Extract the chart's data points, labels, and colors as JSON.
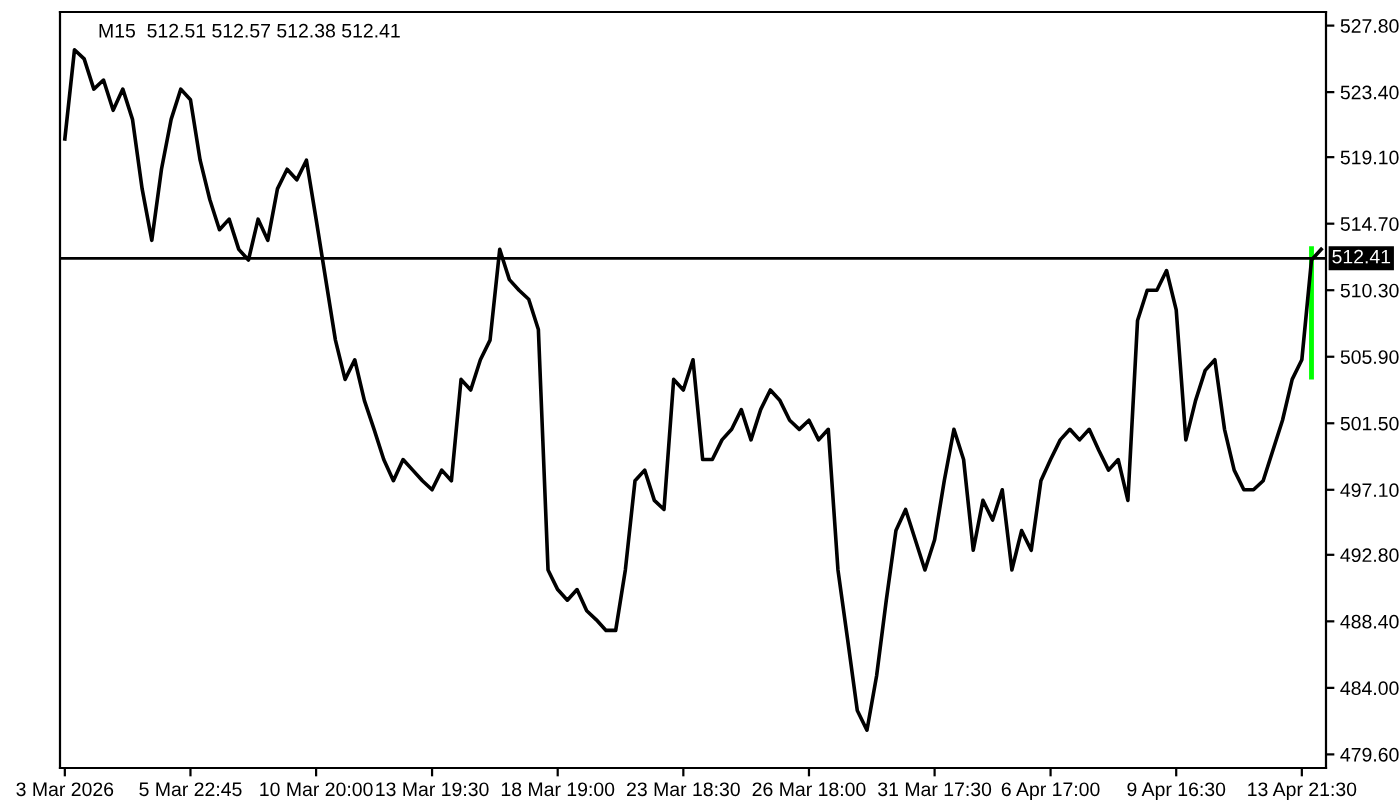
{
  "chart_data": {
    "type": "line",
    "title": "M15  512.51 512.57 512.38 512.41",
    "marker": "none",
    "grid": false,
    "ylim": [
      478.7,
      528.7
    ],
    "categories": [
      "3 Mar 2026",
      null,
      null,
      null,
      null,
      null,
      null,
      null,
      null,
      null,
      null,
      null,
      null,
      "5 Mar 22:45",
      null,
      null,
      null,
      null,
      null,
      null,
      null,
      null,
      null,
      null,
      null,
      null,
      "10 Mar 20:00",
      null,
      null,
      null,
      null,
      null,
      null,
      null,
      null,
      null,
      null,
      null,
      "13 Mar 19:30",
      null,
      null,
      null,
      null,
      null,
      null,
      null,
      null,
      null,
      null,
      null,
      null,
      "18 Mar 19:00",
      null,
      null,
      null,
      null,
      null,
      null,
      null,
      null,
      null,
      null,
      null,
      null,
      "23 Mar 18:30",
      null,
      null,
      null,
      null,
      null,
      null,
      null,
      null,
      null,
      null,
      null,
      null,
      "26 Mar 18:00",
      null,
      null,
      null,
      null,
      null,
      null,
      null,
      null,
      null,
      null,
      null,
      null,
      "31 Mar 17:30",
      null,
      null,
      null,
      null,
      null,
      null,
      null,
      null,
      null,
      null,
      null,
      "6 Apr 17:00",
      null,
      null,
      null,
      null,
      null,
      null,
      null,
      null,
      null,
      null,
      null,
      null,
      "9 Apr 16:30",
      null,
      null,
      null,
      null,
      null,
      null,
      null,
      null,
      null,
      null,
      null,
      null,
      "13 Apr 21:30",
      null,
      null
    ],
    "yticks": [
      {
        "value": 479.6,
        "label": "479.60"
      },
      {
        "value": 484.0,
        "label": "484.00"
      },
      {
        "value": 488.4,
        "label": "488.40"
      },
      {
        "value": 492.8,
        "label": "492.80"
      },
      {
        "value": 497.1,
        "label": "497.10"
      },
      {
        "value": 501.5,
        "label": "501.50"
      },
      {
        "value": 505.9,
        "label": "505.90"
      },
      {
        "value": 510.3,
        "label": "510.30"
      },
      {
        "value": 514.7,
        "label": "514.70"
      },
      {
        "value": 519.1,
        "label": "519.10"
      },
      {
        "value": 523.4,
        "label": "523.40"
      },
      {
        "value": 527.8,
        "label": "527.80"
      }
    ],
    "ref_lines": [
      {
        "axis": "y",
        "value": 512.41,
        "label": "512.41",
        "color": "#000000"
      }
    ],
    "series": [
      {
        "color": "#000000",
        "values": [
          520.3,
          526.2,
          525.6,
          523.6,
          524.2,
          522.2,
          523.6,
          521.6,
          517.0,
          513.6,
          518.3,
          521.6,
          523.6,
          522.9,
          518.9,
          516.3,
          514.3,
          515.0,
          513.0,
          512.3,
          515.0,
          513.6,
          517.0,
          518.3,
          517.6,
          518.9,
          515.0,
          511.0,
          507.0,
          504.4,
          505.7,
          503.0,
          501.1,
          499.1,
          497.7,
          499.1,
          498.4,
          497.7,
          497.1,
          498.4,
          497.7,
          504.4,
          503.7,
          505.7,
          507.0,
          513.0,
          511.0,
          510.3,
          509.7,
          507.7,
          491.8,
          490.5,
          489.8,
          490.5,
          489.1,
          488.5,
          487.8,
          487.8,
          491.8,
          497.7,
          498.4,
          496.4,
          495.8,
          504.4,
          503.7,
          505.7,
          499.1,
          499.1,
          500.4,
          501.1,
          502.4,
          500.4,
          502.4,
          503.7,
          503.0,
          501.7,
          501.1,
          501.7,
          500.4,
          501.1,
          491.8,
          487.2,
          482.5,
          481.2,
          484.8,
          489.8,
          494.4,
          495.8,
          493.8,
          491.8,
          493.8,
          497.7,
          501.1,
          499.1,
          493.1,
          496.4,
          495.1,
          497.1,
          491.8,
          494.4,
          493.1,
          497.7,
          499.1,
          500.4,
          501.1,
          500.4,
          501.1,
          499.7,
          498.4,
          499.1,
          496.4,
          508.3,
          510.3,
          510.3,
          511.6,
          509.0,
          500.4,
          503.0,
          505.0,
          505.7,
          501.1,
          498.4,
          497.1,
          497.1,
          497.7,
          499.7,
          501.7,
          504.4,
          505.7,
          512.3,
          513.0
        ]
      },
      {
        "type": "bar",
        "color": "#00ff00",
        "base": [
          null,
          null,
          null,
          null,
          null,
          null,
          null,
          null,
          null,
          null,
          null,
          null,
          null,
          null,
          null,
          null,
          null,
          null,
          null,
          null,
          null,
          null,
          null,
          null,
          null,
          null,
          null,
          null,
          null,
          null,
          null,
          null,
          null,
          null,
          null,
          null,
          null,
          null,
          null,
          null,
          null,
          null,
          null,
          null,
          null,
          null,
          null,
          null,
          null,
          null,
          null,
          null,
          null,
          null,
          null,
          null,
          null,
          null,
          null,
          null,
          null,
          null,
          null,
          null,
          null,
          null,
          null,
          null,
          null,
          null,
          null,
          null,
          null,
          null,
          null,
          null,
          null,
          null,
          null,
          null,
          null,
          null,
          null,
          null,
          null,
          null,
          null,
          null,
          null,
          null,
          null,
          null,
          null,
          null,
          null,
          null,
          null,
          null,
          null,
          null,
          null,
          null,
          null,
          null,
          null,
          null,
          null,
          null,
          null,
          null,
          null,
          null,
          null,
          null,
          null,
          null,
          null,
          null,
          null,
          null,
          null,
          null,
          null,
          null,
          null,
          null,
          null,
          null,
          null,
          504.4,
          null
        ],
        "values": [
          null,
          null,
          null,
          null,
          null,
          null,
          null,
          null,
          null,
          null,
          null,
          null,
          null,
          null,
          null,
          null,
          null,
          null,
          null,
          null,
          null,
          null,
          null,
          null,
          null,
          null,
          null,
          null,
          null,
          null,
          null,
          null,
          null,
          null,
          null,
          null,
          null,
          null,
          null,
          null,
          null,
          null,
          null,
          null,
          null,
          null,
          null,
          null,
          null,
          null,
          null,
          null,
          null,
          null,
          null,
          null,
          null,
          null,
          null,
          null,
          null,
          null,
          null,
          null,
          null,
          null,
          null,
          null,
          null,
          null,
          null,
          null,
          null,
          null,
          null,
          null,
          null,
          null,
          null,
          null,
          null,
          null,
          null,
          null,
          null,
          null,
          null,
          null,
          null,
          null,
          null,
          null,
          null,
          null,
          null,
          null,
          null,
          null,
          null,
          null,
          null,
          null,
          null,
          null,
          null,
          null,
          null,
          null,
          null,
          null,
          null,
          null,
          null,
          null,
          null,
          null,
          null,
          null,
          null,
          null,
          null,
          null,
          null,
          null,
          null,
          null,
          null,
          null,
          null,
          8.8,
          null
        ]
      }
    ]
  }
}
